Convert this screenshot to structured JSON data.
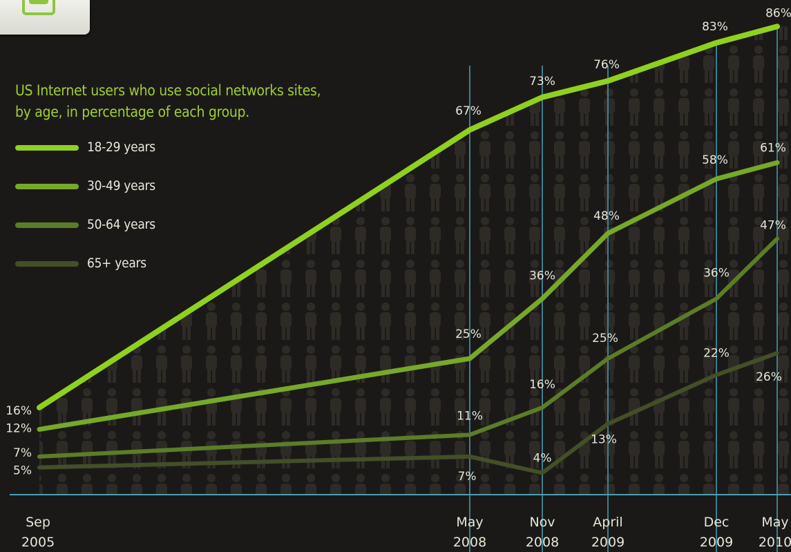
{
  "chart_data": {
    "type": "line",
    "title": "US Internet users who use social networks sites,",
    "subtitle": "by age, in percentage of each group.",
    "x": [
      {
        "month": "Sep",
        "year": "2005"
      },
      {
        "month": "May",
        "year": "2008"
      },
      {
        "month": "Nov",
        "year": "2008"
      },
      {
        "month": "April",
        "year": "2009"
      },
      {
        "month": "Dec",
        "year": "2009"
      },
      {
        "month": "May",
        "year": "2010"
      }
    ],
    "series": [
      {
        "name": "18-29 years",
        "color": "#8fd11f",
        "values": [
          16,
          67,
          73,
          76,
          83,
          86
        ],
        "labels": [
          "16%",
          "67%",
          "73%",
          "76%",
          "83%",
          "86%"
        ]
      },
      {
        "name": "30-49 years",
        "color": "#76a92a",
        "values": [
          12,
          25,
          36,
          48,
          58,
          61
        ],
        "labels": [
          "12%",
          "25%",
          "36%",
          "48%",
          "58%",
          "61%"
        ]
      },
      {
        "name": "50-64 years",
        "color": "#5c7d27",
        "values": [
          7,
          11,
          16,
          25,
          36,
          47
        ],
        "labels": [
          "7%",
          "11%",
          "16%",
          "25%",
          "36%",
          "47%"
        ]
      },
      {
        "name": "65+ years",
        "color": "#434f27",
        "values": [
          5,
          7,
          4,
          13,
          22,
          26
        ],
        "labels": [
          "5%",
          "7%",
          "4%",
          "13%",
          "22%",
          "26%"
        ]
      }
    ],
    "grid": false,
    "legend": "top-left",
    "vertical_guides_color": "#4a9fb8",
    "label_color": "#e6e6d8",
    "title_color": "#9fcf32"
  }
}
